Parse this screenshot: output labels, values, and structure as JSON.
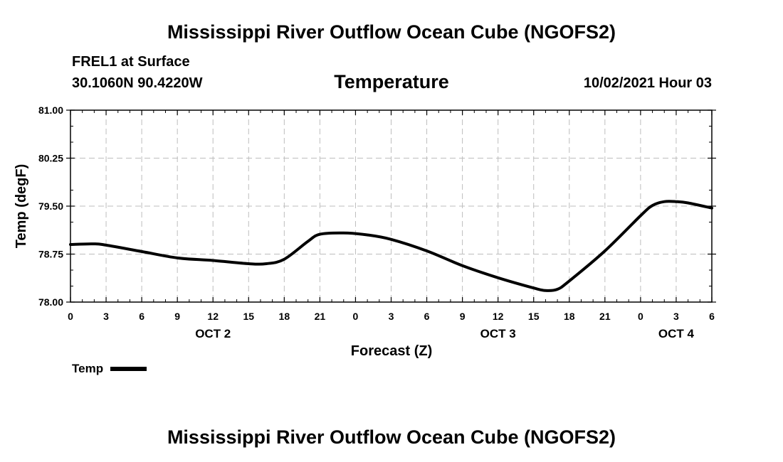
{
  "header": {
    "title": "Mississippi River Outflow Ocean Cube (NGOFS2)",
    "station": "FREL1 at Surface",
    "coords": "30.1060N  90.4220W",
    "datetime": "10/02/2021 Hour 03"
  },
  "footer": {
    "title": "Mississippi River Outflow Ocean Cube (NGOFS2)"
  },
  "chart_data": {
    "type": "line",
    "title": "Temperature",
    "xlabel": "Forecast (Z)",
    "ylabel": "Temp (degF)",
    "ylim": [
      78.0,
      81.0
    ],
    "xlim_hours_from_oct2_00z": [
      0,
      54
    ],
    "grid": true,
    "legend_position": "bottom-left",
    "y_ticks": [
      "78.00",
      "78.75",
      "79.50",
      "80.25",
      "81.00"
    ],
    "x_ticks": [
      "0",
      "3",
      "6",
      "9",
      "12",
      "15",
      "18",
      "21",
      "0",
      "3",
      "6",
      "9",
      "12",
      "15",
      "18",
      "21",
      "0",
      "3",
      "6"
    ],
    "day_labels": [
      {
        "label": "OCT 2",
        "at_hour": 12
      },
      {
        "label": "OCT 3",
        "at_hour": 36
      },
      {
        "label": "OCT 4",
        "at_hour": 51
      }
    ],
    "series": [
      {
        "name": "Temp",
        "color": "#000000",
        "points": [
          [
            0,
            78.9
          ],
          [
            2,
            78.91
          ],
          [
            3,
            78.89
          ],
          [
            6,
            78.79
          ],
          [
            9,
            78.69
          ],
          [
            12,
            78.65
          ],
          [
            15,
            78.6
          ],
          [
            16.5,
            78.6
          ],
          [
            18,
            78.67
          ],
          [
            20,
            78.95
          ],
          [
            21,
            79.06
          ],
          [
            23,
            79.08
          ],
          [
            25,
            79.05
          ],
          [
            27,
            78.98
          ],
          [
            30,
            78.8
          ],
          [
            33,
            78.57
          ],
          [
            36,
            78.38
          ],
          [
            39,
            78.22
          ],
          [
            40,
            78.18
          ],
          [
            41,
            78.2
          ],
          [
            42,
            78.33
          ],
          [
            45,
            78.8
          ],
          [
            48,
            79.35
          ],
          [
            49,
            79.51
          ],
          [
            50,
            79.57
          ],
          [
            51,
            79.57
          ],
          [
            52,
            79.55
          ],
          [
            54,
            79.47
          ]
        ]
      }
    ]
  }
}
